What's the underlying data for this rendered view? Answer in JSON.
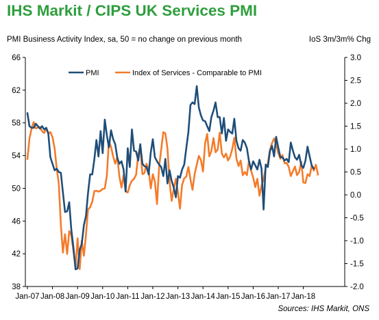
{
  "header": {
    "title": "IHS Markit / CIPS UK Services PMI",
    "subtitle_left": "PMI Business Activity Index, sa, 50 = no change on previous month",
    "subtitle_right": "IoS 3m/3m% Chg"
  },
  "source": "Sources: IHS Markit, ONS",
  "chart_data": {
    "type": "line",
    "x_axis": {
      "tick_labels": [
        "Jan-07",
        "Jan-08",
        "Jan-09",
        "Jan-10",
        "Jan-11",
        "Jan-12",
        "Jan-13",
        "Jan-14",
        "Jan-15",
        "Jan-16",
        "Jan-17",
        "Jan-18"
      ],
      "start": "2007-01",
      "end": "2018-06"
    },
    "y_axis_left": {
      "min": 38,
      "max": 66,
      "ticks": [
        "66",
        "62",
        "58",
        "54",
        "50",
        "46",
        "42",
        "38"
      ]
    },
    "y_axis_right": {
      "min": -2.0,
      "max": 3.0,
      "ticks": [
        "3.0",
        "2.5",
        "2.0",
        "1.5",
        "1.0",
        "0.5",
        "0.0",
        "-0.5",
        "-1.0",
        "-1.5",
        "-2.0"
      ]
    },
    "grid": "none",
    "legend_position": "top-left",
    "series": [
      {
        "name": "PMI",
        "axis": "left",
        "color": "#1f4e79",
        "values": [
          59.2,
          57.6,
          57.4,
          57.4,
          57.9,
          57.6,
          57.3,
          57.6,
          57.2,
          57.4,
          56.7,
          53.8,
          53.0,
          52.2,
          52.4,
          52.0,
          51.9,
          49.5,
          47.1,
          47.2,
          48.3,
          45.0,
          42.8,
          40.1,
          40.2,
          42.5,
          43.2,
          45.5,
          46.6,
          49.4,
          51.7,
          51.7,
          53.5,
          55.9,
          53.9,
          57.0,
          54.3,
          58.4,
          56.5,
          55.0,
          57.1,
          56.0,
          55.4,
          53.7,
          53.0,
          53.3,
          52.3,
          49.6,
          54.9,
          52.6,
          57.2,
          54.6,
          54.5,
          53.4,
          55.4,
          53.0,
          52.7,
          52.6,
          51.7,
          54.4,
          56.0,
          53.8,
          53.3,
          52.9,
          52.6,
          51.5,
          53.6,
          50.6,
          52.2,
          50.9,
          50.1,
          48.9,
          51.5,
          51.3,
          52.3,
          52.9,
          54.9,
          56.9,
          60.2,
          60.5,
          60.3,
          62.5,
          59.9,
          58.9,
          58.3,
          58.2,
          57.6,
          57.0,
          58.7,
          59.5,
          60.5,
          58.7,
          58.7,
          56.7,
          58.6,
          55.8,
          57.2,
          56.9,
          56.7,
          58.5,
          55.8,
          54.9,
          54.6,
          55.9,
          55.6,
          54.9,
          53.3,
          52.3,
          53.3,
          52.8,
          52.3,
          53.5,
          52.4,
          47.4,
          52.9,
          52.6,
          54.5,
          55.2,
          53.9,
          56.3,
          55.0,
          53.8,
          53.8,
          53.4,
          53.6,
          53.2,
          55.6,
          54.6,
          53.8,
          53.5,
          54.1,
          52.8,
          52.5,
          53.4,
          55.1,
          53.9,
          52.8,
          52.4
        ]
      },
      {
        "name": "Index of Services - Comparable to PMI",
        "axis": "right",
        "color": "#f47b2a",
        "values": [
          0.78,
          1.23,
          1.45,
          1.59,
          1.45,
          1.47,
          1.48,
          1.39,
          1.35,
          1.45,
          1.34,
          1.37,
          1.26,
          1.02,
          0.58,
          0.25,
          -0.65,
          -1.26,
          -0.86,
          -1.29,
          -0.79,
          -0.88,
          -1.22,
          -1.59,
          -0.95,
          -1.62,
          -1.0,
          -1.33,
          -0.88,
          -0.32,
          -0.27,
          -0.15,
          0.08,
          0.09,
          0.07,
          0.09,
          0.13,
          0.14,
          0.42,
          1.17,
          1.05,
          0.84,
          0.68,
          0.83,
          0.4,
          0.16,
          0.43,
          0.08,
          0.05,
          0.21,
          0.31,
          0.35,
          0.44,
          0.89,
          1.05,
          0.45,
          0.48,
          0.68,
          0.55,
          0.14,
          0.45,
          0.29,
          -0.2,
          0.62,
          0.99,
          1.37,
          1.34,
          1.02,
          0.29,
          -0.13,
          0.13,
          0.35,
          0.06,
          -0.3,
          0.22,
          0.36,
          0.4,
          0.61,
          0.34,
          0.11,
          0.45,
          0.66,
          0.85,
          0.76,
          0.51,
          1.13,
          1.33,
          0.84,
          0.96,
          1.24,
          0.93,
          0.99,
          1.36,
          0.9,
          0.82,
          0.9,
          0.75,
          0.84,
          1.0,
          1.25,
          0.79,
          0.63,
          0.75,
          0.43,
          0.5,
          0.43,
          0.75,
          0.53,
          0.38,
          0.17,
          0.35,
          -0.02,
          0.2,
          0.34,
          0.6,
          0.68,
          0.98,
          1.13,
          1.23,
          1.11,
          0.91,
          0.79,
          0.87,
          0.69,
          0.7,
          0.61,
          0.41,
          0.52,
          0.62,
          0.43,
          0.5,
          0.72,
          0.27,
          0.26,
          0.45,
          0.41,
          0.64,
          0.53,
          0.66,
          0.44
        ]
      }
    ]
  }
}
